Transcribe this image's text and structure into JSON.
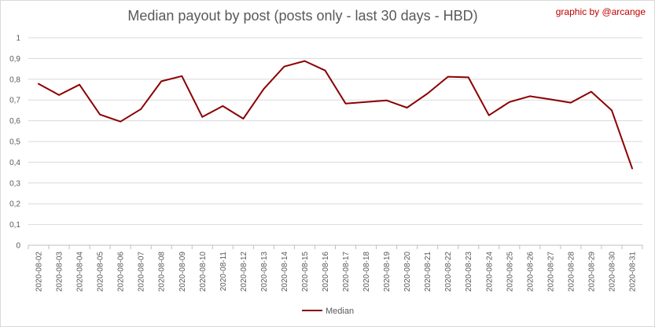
{
  "chart_data": {
    "type": "line",
    "title": "Median payout by post (posts only - last 30 days - HBD)",
    "credit": "graphic by @arcange",
    "xlabel": "",
    "ylabel": "",
    "ylim": [
      0,
      1
    ],
    "yticks": [
      "0",
      "0,1",
      "0,2",
      "0,3",
      "0,4",
      "0,5",
      "0,6",
      "0,7",
      "0,8",
      "0,9",
      "1"
    ],
    "grid": true,
    "legend_position": "bottom",
    "categories": [
      "2020-08-02",
      "2020-08-03",
      "2020-08-04",
      "2020-08-05",
      "2020-08-06",
      "2020-08-07",
      "2020-08-08",
      "2020-08-09",
      "2020-08-10",
      "2020-08-11",
      "2020-08-12",
      "2020-08-13",
      "2020-08-14",
      "2020-08-15",
      "2020-08-16",
      "2020-08-17",
      "2020-08-18",
      "2020-08-19",
      "2020-08-20",
      "2020-08-21",
      "2020-08-22",
      "2020-08-23",
      "2020-08-24",
      "2020-08-25",
      "2020-08-26",
      "2020-08-27",
      "2020-08-28",
      "2020-08-29",
      "2020-08-30",
      "2020-08-31"
    ],
    "series": [
      {
        "name": "Median",
        "color": "#8b0000",
        "values": [
          0.778,
          0.724,
          0.774,
          0.63,
          0.596,
          0.656,
          0.79,
          0.815,
          0.618,
          0.671,
          0.61,
          0.753,
          0.861,
          0.888,
          0.842,
          0.683,
          0.69,
          0.698,
          0.663,
          0.731,
          0.812,
          0.809,
          0.626,
          0.69,
          0.718,
          0.703,
          0.687,
          0.74,
          0.65,
          0.37
        ]
      }
    ]
  }
}
